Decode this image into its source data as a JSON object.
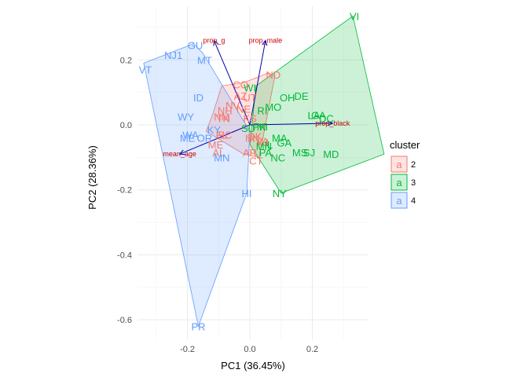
{
  "chart_data": {
    "type": "scatter",
    "xlabel": "PC1 (36.45%)",
    "ylabel": "PC2 (28.36%)",
    "xlim": [
      -0.36,
      0.38
    ],
    "ylim": [
      -0.66,
      0.365
    ],
    "xticks": [
      -0.2,
      0.0,
      0.2
    ],
    "yticks": [
      -0.6,
      -0.4,
      -0.2,
      0.0,
      0.2
    ],
    "xtick_labels": [
      "-0.2",
      "0.0",
      "0.2"
    ],
    "ytick_labels": [
      "-0.6",
      "-0.4",
      "-0.2",
      "0.0",
      "0.2"
    ],
    "grid": true,
    "legend": {
      "title": "cluster",
      "position": "right",
      "entries": [
        {
          "key": "a",
          "label": "2",
          "color": "#F8766D"
        },
        {
          "key": "a",
          "label": "3",
          "color": "#00BA38"
        },
        {
          "key": "a",
          "label": "4",
          "color": "#619CFF"
        }
      ]
    },
    "series": [
      {
        "name": "2",
        "color": "#F8766D",
        "hull": [
          [
            -0.09,
            0.12
          ],
          [
            -0.02,
            0.13
          ],
          [
            0.06,
            0.16
          ],
          [
            0.08,
            0.15
          ],
          [
            0.03,
            -0.1
          ],
          [
            -0.02,
            -0.09
          ],
          [
            -0.14,
            -0.02
          ],
          [
            -0.12,
            0.03
          ]
        ],
        "points": [
          {
            "label": "ND",
            "x": 0.075,
            "y": 0.155
          },
          {
            "label": "CO",
            "x": -0.03,
            "y": 0.125
          },
          {
            "label": "AZ",
            "x": -0.03,
            "y": 0.09
          },
          {
            "label": "UT",
            "x": 0.0,
            "y": 0.085
          },
          {
            "label": "NV",
            "x": -0.055,
            "y": 0.06
          },
          {
            "label": "NH",
            "x": -0.08,
            "y": 0.045
          },
          {
            "label": "NE",
            "x": -0.02,
            "y": 0.05
          },
          {
            "label": "TN",
            "x": -0.085,
            "y": 0.02
          },
          {
            "label": "NM",
            "x": -0.09,
            "y": 0.025
          },
          {
            "label": "KS",
            "x": 0.0,
            "y": 0.02
          },
          {
            "label": "SC",
            "x": -0.08,
            "y": -0.03
          },
          {
            "label": "FL",
            "x": -0.09,
            "y": -0.03
          },
          {
            "label": "IN",
            "x": 0.015,
            "y": -0.04
          },
          {
            "label": "OK",
            "x": 0.015,
            "y": -0.035
          },
          {
            "label": "IA",
            "x": 0.0,
            "y": -0.04
          },
          {
            "label": "ME",
            "x": -0.11,
            "y": -0.06
          },
          {
            "label": "AL",
            "x": -0.1,
            "y": -0.085
          },
          {
            "label": "VA",
            "x": 0.04,
            "y": -0.05
          },
          {
            "label": "NJ",
            "x": 0.04,
            "y": -0.055
          },
          {
            "label": "AR",
            "x": 0.0,
            "y": -0.085
          },
          {
            "label": "CT",
            "x": 0.02,
            "y": -0.11
          }
        ]
      },
      {
        "name": "3",
        "color": "#00BA38",
        "hull": [
          [
            0.02,
            0.12
          ],
          [
            0.33,
            0.335
          ],
          [
            0.43,
            -0.09
          ],
          [
            0.1,
            -0.21
          ],
          [
            0.0,
            -0.06
          ]
        ],
        "points": [
          {
            "label": "VI",
            "x": 0.335,
            "y": 0.335
          },
          {
            "label": "WI",
            "x": 0.0,
            "y": 0.115
          },
          {
            "label": "DE",
            "x": 0.165,
            "y": 0.09
          },
          {
            "label": "OH",
            "x": 0.12,
            "y": 0.085
          },
          {
            "label": "MO",
            "x": 0.075,
            "y": 0.055
          },
          {
            "label": "RI",
            "x": 0.04,
            "y": 0.045
          },
          {
            "label": "LA",
            "x": 0.205,
            "y": 0.03
          },
          {
            "label": "GA",
            "x": 0.22,
            "y": 0.03
          },
          {
            "label": "DC",
            "x": 0.245,
            "y": 0.02
          },
          {
            "label": "MI",
            "x": 0.04,
            "y": -0.005
          },
          {
            "label": "PK",
            "x": 0.03,
            "y": -0.005
          },
          {
            "label": "SD",
            "x": -0.005,
            "y": -0.01
          },
          {
            "label": "MA",
            "x": 0.095,
            "y": -0.04
          },
          {
            "label": "GA",
            "x": 0.11,
            "y": -0.055
          },
          {
            "label": "IL",
            "x": 0.06,
            "y": -0.06
          },
          {
            "label": "MN",
            "x": 0.045,
            "y": -0.065
          },
          {
            "label": "PA",
            "x": 0.05,
            "y": -0.085
          },
          {
            "label": "NC",
            "x": 0.09,
            "y": -0.1
          },
          {
            "label": "MS",
            "x": 0.16,
            "y": -0.085
          },
          {
            "label": "SJ",
            "x": 0.19,
            "y": -0.085
          },
          {
            "label": "MD",
            "x": 0.26,
            "y": -0.09
          },
          {
            "label": "NY",
            "x": 0.095,
            "y": -0.21
          }
        ]
      },
      {
        "name": "4",
        "color": "#619CFF",
        "hull": [
          [
            -0.34,
            0.19
          ],
          [
            -0.18,
            0.25
          ],
          [
            -0.15,
            0.22
          ],
          [
            0.0,
            -0.02
          ],
          [
            -0.01,
            -0.21
          ],
          [
            -0.165,
            -0.62
          ]
        ],
        "points": [
          {
            "label": "GU",
            "x": -0.175,
            "y": 0.245
          },
          {
            "label": "NJ1",
            "x": -0.245,
            "y": 0.215
          },
          {
            "label": "MT",
            "x": -0.145,
            "y": 0.2
          },
          {
            "label": "VT",
            "x": -0.335,
            "y": 0.17
          },
          {
            "label": "ID",
            "x": -0.165,
            "y": 0.085
          },
          {
            "label": "WY",
            "x": -0.205,
            "y": 0.025
          },
          {
            "label": "KY",
            "x": -0.115,
            "y": -0.015
          },
          {
            "label": "WA",
            "x": -0.19,
            "y": -0.03
          },
          {
            "label": "ME",
            "x": -0.2,
            "y": -0.04
          },
          {
            "label": "OR",
            "x": -0.145,
            "y": -0.04
          },
          {
            "label": "MN",
            "x": -0.09,
            "y": -0.1
          },
          {
            "label": "HI",
            "x": -0.01,
            "y": -0.21
          },
          {
            "label": "PR",
            "x": -0.165,
            "y": -0.62
          }
        ]
      }
    ],
    "loadings": [
      {
        "label": "prop_g",
        "x": -0.115,
        "y": 0.26
      },
      {
        "label": "prop_male",
        "x": 0.05,
        "y": 0.26
      },
      {
        "label": "prop_black",
        "x": 0.265,
        "y": 0.005
      },
      {
        "label": "mean_age",
        "x": -0.225,
        "y": -0.09
      }
    ]
  }
}
